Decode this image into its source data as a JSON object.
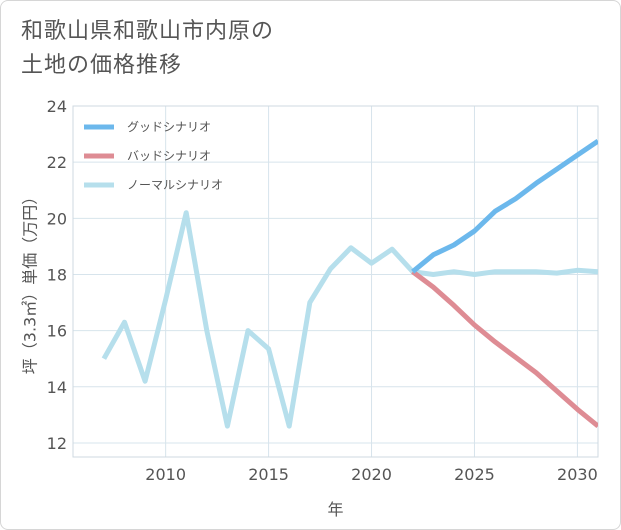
{
  "title": {
    "line1": "和歌山県和歌山市内原の",
    "line2": "土地の価格推移"
  },
  "chart_data": {
    "type": "line",
    "title": "和歌山県和歌山市内原の土地の価格推移",
    "xlabel": "年",
    "ylabel": "坪（3.3㎡）単価（万円）",
    "xlim": [
      2005.5,
      2031
    ],
    "ylim": [
      11.5,
      24
    ],
    "x_ticks": [
      2010,
      2015,
      2020,
      2025,
      2030
    ],
    "y_ticks": [
      12,
      14,
      16,
      18,
      20,
      22,
      24
    ],
    "grid": true,
    "legend_position": "top-left",
    "series": [
      {
        "name": "グッドシナリオ",
        "color": "#6cb8ec",
        "points": [
          [
            2022,
            18.1
          ],
          [
            2023,
            18.7
          ],
          [
            2024,
            19.05
          ],
          [
            2025,
            19.55
          ],
          [
            2026,
            20.25
          ],
          [
            2027,
            20.7
          ],
          [
            2028,
            21.25
          ],
          [
            2029,
            21.75
          ],
          [
            2030,
            22.25
          ],
          [
            2031,
            22.75
          ]
        ]
      },
      {
        "name": "バッドシナリオ",
        "color": "#de8c94",
        "points": [
          [
            2022,
            18.1
          ],
          [
            2023,
            17.55
          ],
          [
            2024,
            16.9
          ],
          [
            2025,
            16.2
          ],
          [
            2026,
            15.6
          ],
          [
            2027,
            15.05
          ],
          [
            2028,
            14.5
          ],
          [
            2029,
            13.85
          ],
          [
            2030,
            13.2
          ],
          [
            2031,
            12.6
          ]
        ]
      },
      {
        "name": "ノーマルシナリオ",
        "color": "#b6dfec",
        "points": [
          [
            2007,
            15.0
          ],
          [
            2008,
            16.3
          ],
          [
            2009,
            14.2
          ],
          [
            2010,
            17.1
          ],
          [
            2011,
            20.2
          ],
          [
            2012,
            16.0
          ],
          [
            2013,
            12.6
          ],
          [
            2014,
            16.0
          ],
          [
            2015,
            15.35
          ],
          [
            2016,
            12.6
          ],
          [
            2017,
            17.0
          ],
          [
            2018,
            18.2
          ],
          [
            2019,
            18.95
          ],
          [
            2020,
            18.4
          ],
          [
            2021,
            18.9
          ],
          [
            2022,
            18.1
          ],
          [
            2023,
            18.0
          ],
          [
            2024,
            18.1
          ],
          [
            2025,
            18.0
          ],
          [
            2026,
            18.1
          ],
          [
            2027,
            18.1
          ],
          [
            2028,
            18.1
          ],
          [
            2029,
            18.05
          ],
          [
            2030,
            18.15
          ],
          [
            2031,
            18.1
          ]
        ]
      }
    ]
  }
}
